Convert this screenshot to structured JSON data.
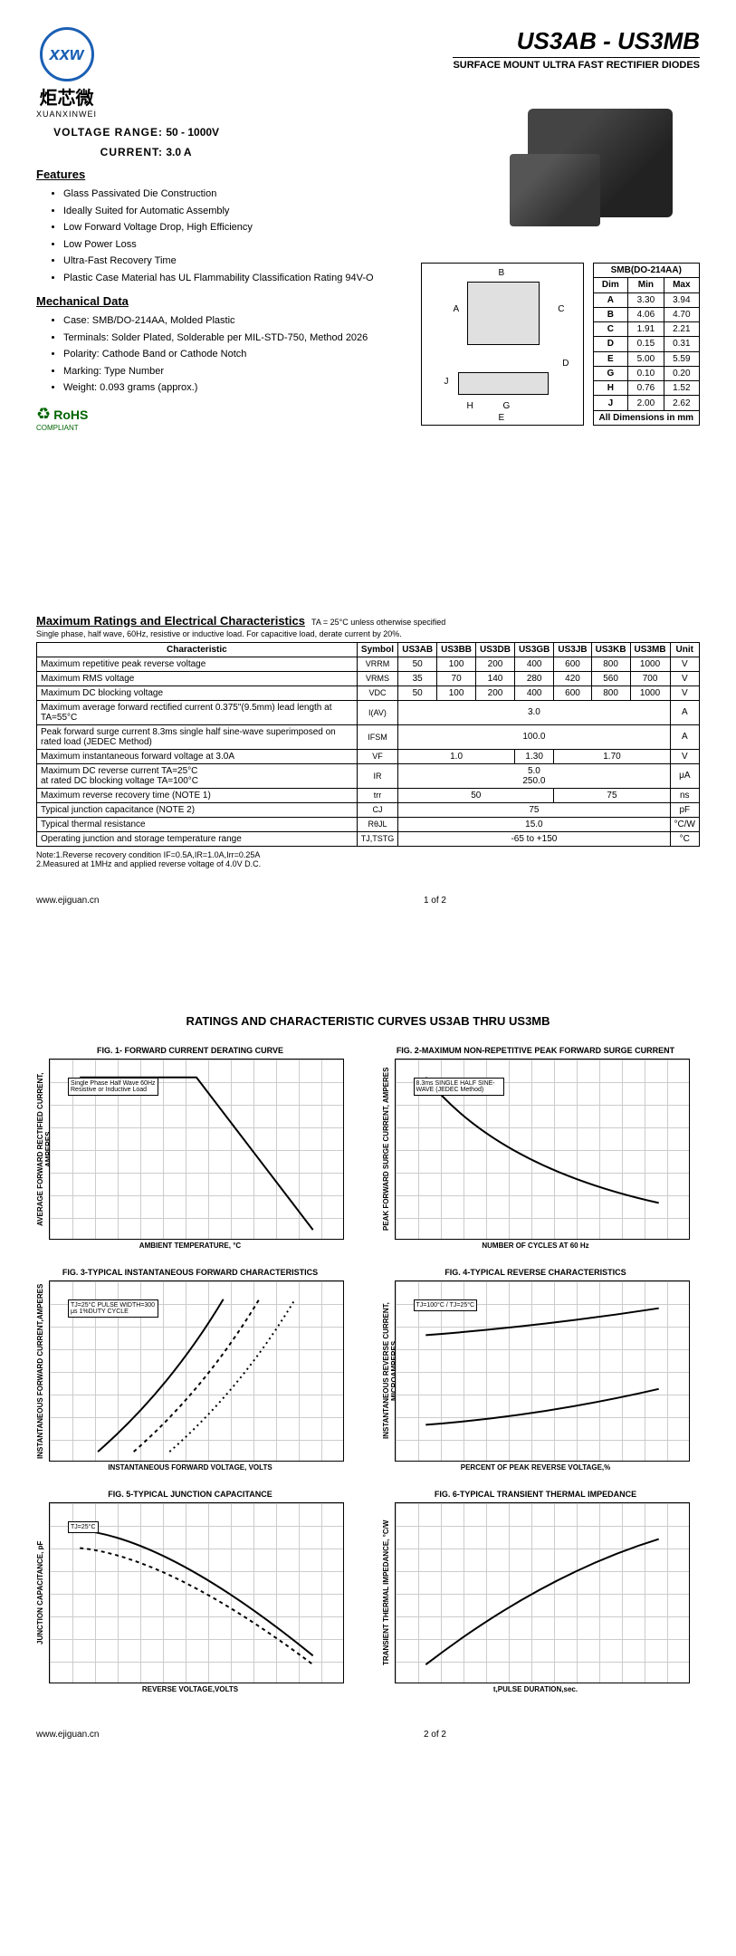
{
  "header": {
    "logo_chars": "xxw",
    "logo_cn": "炬芯微",
    "logo_en": "XUANXINWEI",
    "part_range": "US3AB - US3MB",
    "subtitle": "SURFACE MOUNT ULTRA FAST RECTIFIER DIODES"
  },
  "specs": {
    "voltage_label": "VOLTAGE RANGE:",
    "voltage_value": "50 - 1000V",
    "current_label": "CURRENT:",
    "current_value": "3.0 A"
  },
  "features": {
    "title": "Features",
    "items": [
      "Glass Passivated Die Construction",
      "Ideally Suited for Automatic Assembly",
      "Low Forward Voltage Drop, High Efficiency",
      "Low Power Loss",
      "Ultra-Fast Recovery Time",
      "Plastic Case Material has UL Flammability Classification Rating 94V-O"
    ]
  },
  "mech": {
    "title": "Mechanical Data",
    "items": [
      "Case: SMB/DO-214AA, Molded Plastic",
      "Terminals: Solder Plated, Solderable per MIL-STD-750, Method 2026",
      "Polarity: Cathode Band or Cathode Notch",
      "Marking: Type Number",
      "Weight: 0.093 grams (approx.)"
    ]
  },
  "rohs": {
    "main": "RoHS",
    "sub": "COMPLIANT"
  },
  "dim_table": {
    "title": "SMB(DO-214AA)",
    "cols": [
      "Dim",
      "Min",
      "Max"
    ],
    "rows": [
      [
        "A",
        "3.30",
        "3.94"
      ],
      [
        "B",
        "4.06",
        "4.70"
      ],
      [
        "C",
        "1.91",
        "2.21"
      ],
      [
        "D",
        "0.15",
        "0.31"
      ],
      [
        "E",
        "5.00",
        "5.59"
      ],
      [
        "G",
        "0.10",
        "0.20"
      ],
      [
        "H",
        "0.76",
        "1.52"
      ],
      [
        "J",
        "2.00",
        "2.62"
      ]
    ],
    "footer": "All Dimensions in mm"
  },
  "ratings": {
    "title": "Maximum Ratings and Electrical Characteristics",
    "title_note": "TA = 25°C unless otherwise specified",
    "sub": "Single phase, half wave, 60Hz, resistive or inductive load. For capacitive load, derate current by 20%.",
    "cols": [
      "Characteristic",
      "Symbol",
      "US3AB",
      "US3BB",
      "US3DB",
      "US3GB",
      "US3JB",
      "US3KB",
      "US3MB",
      "Unit"
    ],
    "rows": [
      {
        "c": "Maximum repetitive peak reverse voltage",
        "s": "VRRM",
        "v": [
          "50",
          "100",
          "200",
          "400",
          "600",
          "800",
          "1000"
        ],
        "u": "V"
      },
      {
        "c": "Maximum RMS voltage",
        "s": "VRMS",
        "v": [
          "35",
          "70",
          "140",
          "280",
          "420",
          "560",
          "700"
        ],
        "u": "V"
      },
      {
        "c": "Maximum DC blocking voltage",
        "s": "VDC",
        "v": [
          "50",
          "100",
          "200",
          "400",
          "600",
          "800",
          "1000"
        ],
        "u": "V"
      },
      {
        "c": "Maximum average forward rectified current 0.375\"(9.5mm) lead length at TA=55°C",
        "s": "I(AV)",
        "span": "3.0",
        "u": "A"
      },
      {
        "c": "Peak forward surge current 8.3ms single half sine-wave superimposed on rated load (JEDEC Method)",
        "s": "IFSM",
        "span": "100.0",
        "u": "A"
      },
      {
        "c": "Maximum instantaneous forward voltage at 3.0A",
        "s": "VF",
        "v3": [
          "1.0",
          "1.30",
          "1.70"
        ],
        "u": "V"
      },
      {
        "c": "Maximum DC reverse current    TA=25°C\nat rated DC blocking voltage    TA=100°C",
        "s": "IR",
        "span2": [
          "5.0",
          "250.0"
        ],
        "u": "μA"
      },
      {
        "c": "Maximum reverse recovery time    (NOTE 1)",
        "s": "trr",
        "v2": [
          "50",
          "75"
        ],
        "u": "ns"
      },
      {
        "c": "Typical junction capacitance (NOTE 2)",
        "s": "CJ",
        "span": "75",
        "u": "pF"
      },
      {
        "c": "Typical thermal resistance",
        "s": "RθJL",
        "span": "15.0",
        "u": "°C/W"
      },
      {
        "c": "Operating junction and storage temperature range",
        "s": "TJ,TSTG",
        "span": "-65 to +150",
        "u": "°C"
      }
    ],
    "notes": "Note:1.Reverse recovery condition IF=0.5A,IR=1.0A,Irr=0.25A\n        2.Measured at 1MHz and applied reverse voltage of 4.0V D.C."
  },
  "footer1": {
    "url": "www.ejiguan.cn",
    "page": "1 of 2"
  },
  "page2": {
    "title": "RATINGS AND CHARACTERISTIC CURVES US3AB THRU US3MB",
    "charts": [
      {
        "title": "FIG. 1- FORWARD CURRENT DERATING CURVE",
        "ylabel": "AVERAGE FORWARD RECTIFIED CURRENT, AMPERES",
        "xlabel": "AMBIENT TEMPERATURE, °C",
        "note": "Single Phase Half Wave 60Hz Resistive or Inductive Load"
      },
      {
        "title": "FIG. 2-MAXIMUM NON-REPETITIVE PEAK FORWARD SURGE CURRENT",
        "ylabel": "PEAK FORWARD SURGE CURRENT, AMPERES",
        "xlabel": "NUMBER OF CYCLES AT 60 Hz",
        "note": "8.3ms SINGLE HALF SINE-WAVE (JEDEC Method)"
      },
      {
        "title": "FIG. 3-TYPICAL INSTANTANEOUS FORWARD CHARACTERISTICS",
        "ylabel": "INSTANTANEOUS FORWARD CURRENT,AMPERES",
        "xlabel": "INSTANTANEOUS FORWARD VOLTAGE, VOLTS",
        "note": "TJ=25°C PULSE WIDTH=300 μs 1%DUTY CYCLE"
      },
      {
        "title": "FIG. 4-TYPICAL REVERSE CHARACTERISTICS",
        "ylabel": "INSTANTANEOUS REVERSE CURRENT, MICROAMPERES",
        "xlabel": "PERCENT OF PEAK REVERSE VOLTAGE,%",
        "note": "TJ=100°C / TJ=25°C"
      },
      {
        "title": "FIG. 5-TYPICAL JUNCTION CAPACITANCE",
        "ylabel": "JUNCTION CAPACITANCE, pF",
        "xlabel": "REVERSE VOLTAGE,VOLTS",
        "note": "TJ=25°C"
      },
      {
        "title": "FIG. 6-TYPICAL TRANSIENT THERMAL IMPEDANCE",
        "ylabel": "TRANSIENT THERMAL IMPEDANCE, °C/W",
        "xlabel": "t,PULSE DURATION,sec.",
        "note": ""
      }
    ]
  },
  "footer2": {
    "url": "www.ejiguan.cn",
    "page": "2 of 2"
  }
}
